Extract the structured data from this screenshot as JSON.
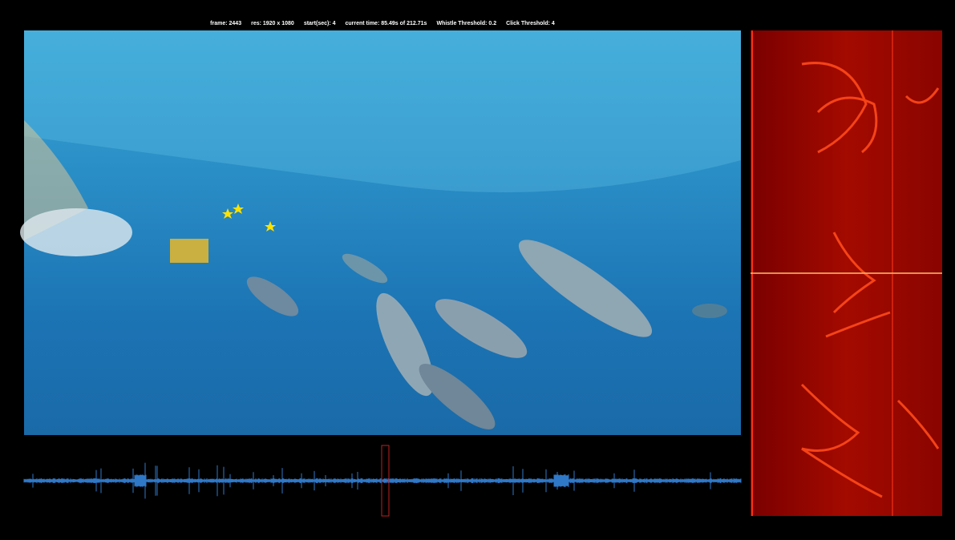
{
  "status_bar": {
    "items": [
      "frame: 2443",
      "res: 1920 x 1080",
      "start(sec): 4",
      "current time: 85.49s of 212.71s",
      "Whistle Threshold: 0.2",
      "Click Threshold: 4"
    ]
  }
}
